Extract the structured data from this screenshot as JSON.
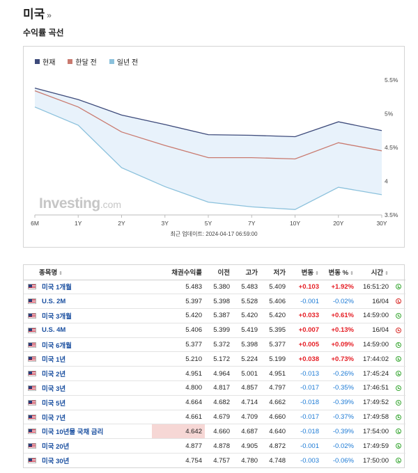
{
  "page": {
    "title": "미국",
    "title_suffix": "»",
    "section_title": "수익률 곡선"
  },
  "chart_data": {
    "type": "line",
    "categories": [
      "6M",
      "1Y",
      "2Y",
      "3Y",
      "5Y",
      "7Y",
      "10Y",
      "20Y",
      "30Y"
    ],
    "series": [
      {
        "name": "현재",
        "color": "#3d4a7a",
        "values": [
          5.38,
          5.21,
          4.98,
          4.84,
          4.69,
          4.68,
          4.66,
          4.88,
          4.75
        ]
      },
      {
        "name": "한달 전",
        "color": "#c97a6f",
        "values": [
          5.34,
          5.1,
          4.73,
          4.53,
          4.35,
          4.35,
          4.33,
          4.57,
          4.45
        ]
      },
      {
        "name": "일년 전",
        "color": "#8bc1dc",
        "values": [
          5.1,
          4.83,
          4.2,
          3.92,
          3.69,
          3.62,
          3.58,
          3.91,
          3.8
        ]
      }
    ],
    "yticks": [
      "5.5%",
      "5%",
      "4.5%",
      "4",
      "3.5%"
    ],
    "ylim": [
      3.5,
      5.5
    ],
    "grid": false,
    "legend_position": "top-left",
    "fill_color": "#e8f2fb"
  },
  "watermark": {
    "brand": "Investing",
    "suffix": ".com"
  },
  "update_note": "최근 업데이트: 2024-04-17 06:59:00",
  "table": {
    "headers": {
      "name": "종목명",
      "yield": "채권수익률",
      "prev": "이전",
      "high": "고가",
      "low": "저가",
      "chg": "변동",
      "chg_pct": "변동 %",
      "time": "시간"
    },
    "sort_glyph": "⇕",
    "rows": [
      {
        "name": "미국 1개월",
        "yield": "5.483",
        "prev": "5.380",
        "high": "5.483",
        "low": "5.409",
        "chg": "+0.103",
        "chg_pct": "+1.92%",
        "time": "16:51:20",
        "dir": "up",
        "status": "open"
      },
      {
        "name": "U.S. 2M",
        "yield": "5.397",
        "prev": "5.398",
        "high": "5.528",
        "low": "5.406",
        "chg": "-0.001",
        "chg_pct": "-0.02%",
        "time": "16/04",
        "dir": "down",
        "status": "closed"
      },
      {
        "name": "미국 3개월",
        "yield": "5.420",
        "prev": "5.387",
        "high": "5.420",
        "low": "5.420",
        "chg": "+0.033",
        "chg_pct": "+0.61%",
        "time": "14:59:00",
        "dir": "up",
        "status": "open"
      },
      {
        "name": "U.S. 4M",
        "yield": "5.406",
        "prev": "5.399",
        "high": "5.419",
        "low": "5.395",
        "chg": "+0.007",
        "chg_pct": "+0.13%",
        "time": "16/04",
        "dir": "up",
        "status": "closed"
      },
      {
        "name": "미국 6개월",
        "yield": "5.377",
        "prev": "5.372",
        "high": "5.398",
        "low": "5.377",
        "chg": "+0.005",
        "chg_pct": "+0.09%",
        "time": "14:59:00",
        "dir": "up",
        "status": "open"
      },
      {
        "name": "미국 1년",
        "yield": "5.210",
        "prev": "5.172",
        "high": "5.224",
        "low": "5.199",
        "chg": "+0.038",
        "chg_pct": "+0.73%",
        "time": "17:44:02",
        "dir": "up",
        "status": "open"
      },
      {
        "name": "미국 2년",
        "yield": "4.951",
        "prev": "4.964",
        "high": "5.001",
        "low": "4.951",
        "chg": "-0.013",
        "chg_pct": "-0.26%",
        "time": "17:45:24",
        "dir": "down",
        "status": "open"
      },
      {
        "name": "미국 3년",
        "yield": "4.800",
        "prev": "4.817",
        "high": "4.857",
        "low": "4.797",
        "chg": "-0.017",
        "chg_pct": "-0.35%",
        "time": "17:46:51",
        "dir": "down",
        "status": "open"
      },
      {
        "name": "미국 5년",
        "yield": "4.664",
        "prev": "4.682",
        "high": "4.714",
        "low": "4.662",
        "chg": "-0.018",
        "chg_pct": "-0.39%",
        "time": "17:49:52",
        "dir": "down",
        "status": "open"
      },
      {
        "name": "미국 7년",
        "yield": "4.661",
        "prev": "4.679",
        "high": "4.709",
        "low": "4.660",
        "chg": "-0.017",
        "chg_pct": "-0.37%",
        "time": "17:49:58",
        "dir": "down",
        "status": "open"
      },
      {
        "name": "미국 10년물 국채 금리",
        "yield": "4.642",
        "prev": "4.660",
        "high": "4.687",
        "low": "4.640",
        "chg": "-0.018",
        "chg_pct": "-0.39%",
        "time": "17:54:00",
        "dir": "down",
        "status": "open",
        "highlight": true
      },
      {
        "name": "미국 20년",
        "yield": "4.877",
        "prev": "4.878",
        "high": "4.905",
        "low": "4.872",
        "chg": "-0.001",
        "chg_pct": "-0.02%",
        "time": "17:49:59",
        "dir": "down",
        "status": "open"
      },
      {
        "name": "미국 30년",
        "yield": "4.754",
        "prev": "4.757",
        "high": "4.780",
        "low": "4.748",
        "chg": "-0.003",
        "chg_pct": "-0.06%",
        "time": "17:50:00",
        "dir": "down",
        "status": "open"
      }
    ]
  }
}
